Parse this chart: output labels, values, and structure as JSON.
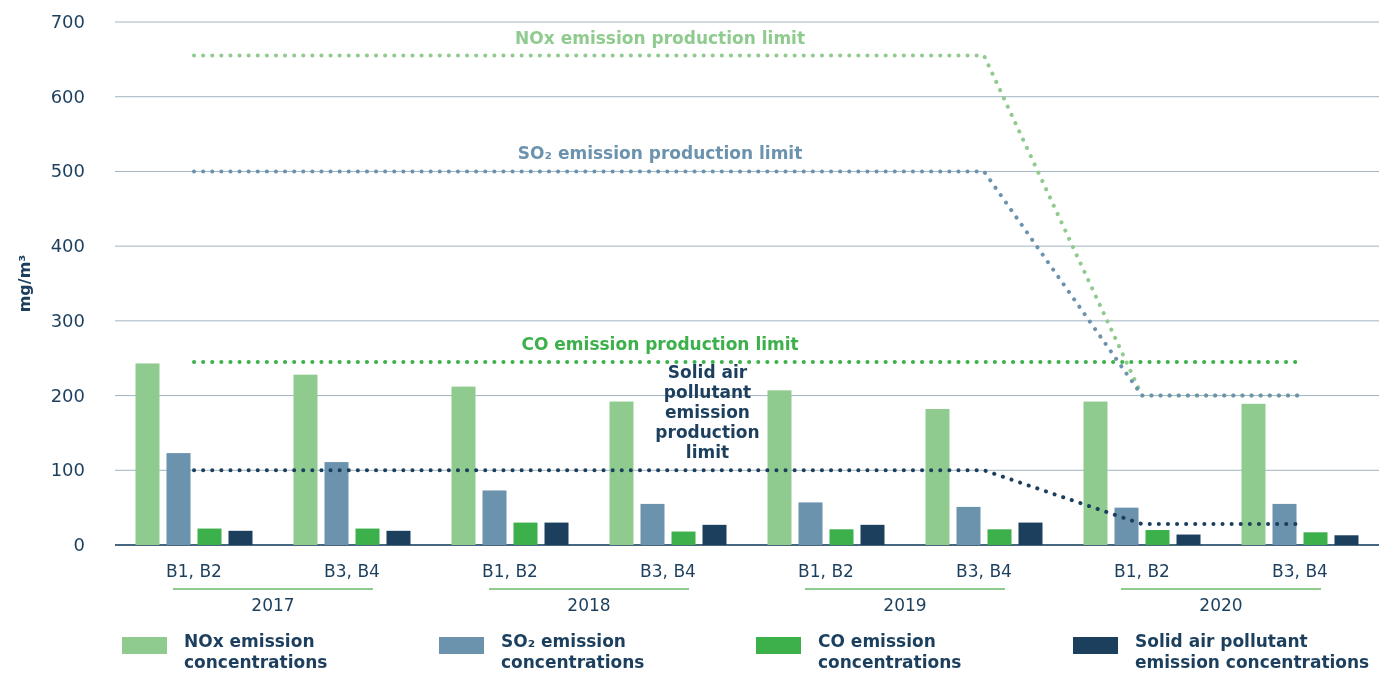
{
  "chart_data": {
    "type": "bar",
    "ylabel": "mg/m³",
    "categories": [
      "B1, B2",
      "B3, B4",
      "B1, B2",
      "B3, B4",
      "B1, B2",
      "B3, B4",
      "B1, B2",
      "B3, B4"
    ],
    "annotations": [
      "2017",
      "2018",
      "2019",
      "2020"
    ],
    "series": [
      {
        "name": "NOx emission concentrations",
        "color": "#8fcb8f",
        "values": [
          243,
          228,
          212,
          192,
          207,
          182,
          192,
          189
        ]
      },
      {
        "name": "SO₂ emission concentrations",
        "color": "#6b93ad",
        "values": [
          123,
          111,
          73,
          55,
          57,
          51,
          50,
          55
        ]
      },
      {
        "name": "CO emission concentrations",
        "color": "#3cb04a",
        "values": [
          22,
          22,
          30,
          18,
          21,
          21,
          20,
          17
        ]
      },
      {
        "name": "Solid air pollutant emission concentrations",
        "color": "#1c3f5e",
        "values": [
          19,
          19,
          30,
          27,
          27,
          30,
          14,
          13
        ]
      },
      {
        "name": "NOx emission production limit",
        "type": "line",
        "color": "#8fcb8f",
        "values": [
          655,
          655,
          655,
          655,
          655,
          655,
          200,
          200
        ]
      },
      {
        "name": "SO₂ emission production limit",
        "type": "line",
        "color": "#6b93ad",
        "values": [
          500,
          500,
          500,
          500,
          500,
          500,
          200,
          200
        ]
      },
      {
        "name": "CO emission production limit",
        "type": "line",
        "color": "#3cb04a",
        "values": [
          245,
          245,
          245,
          245,
          245,
          245,
          245,
          245
        ]
      },
      {
        "name": "Solid air pollutant emission production limit",
        "type": "line",
        "color": "#1c3f5e",
        "values": [
          100,
          100,
          100,
          100,
          100,
          100,
          28,
          28
        ]
      }
    ],
    "ylim": [
      0,
      700
    ],
    "yticks": [
      0,
      100,
      200,
      300,
      400,
      500,
      600,
      700
    ],
    "grid": "y",
    "legend": "bottom",
    "line_style": "dotted"
  }
}
